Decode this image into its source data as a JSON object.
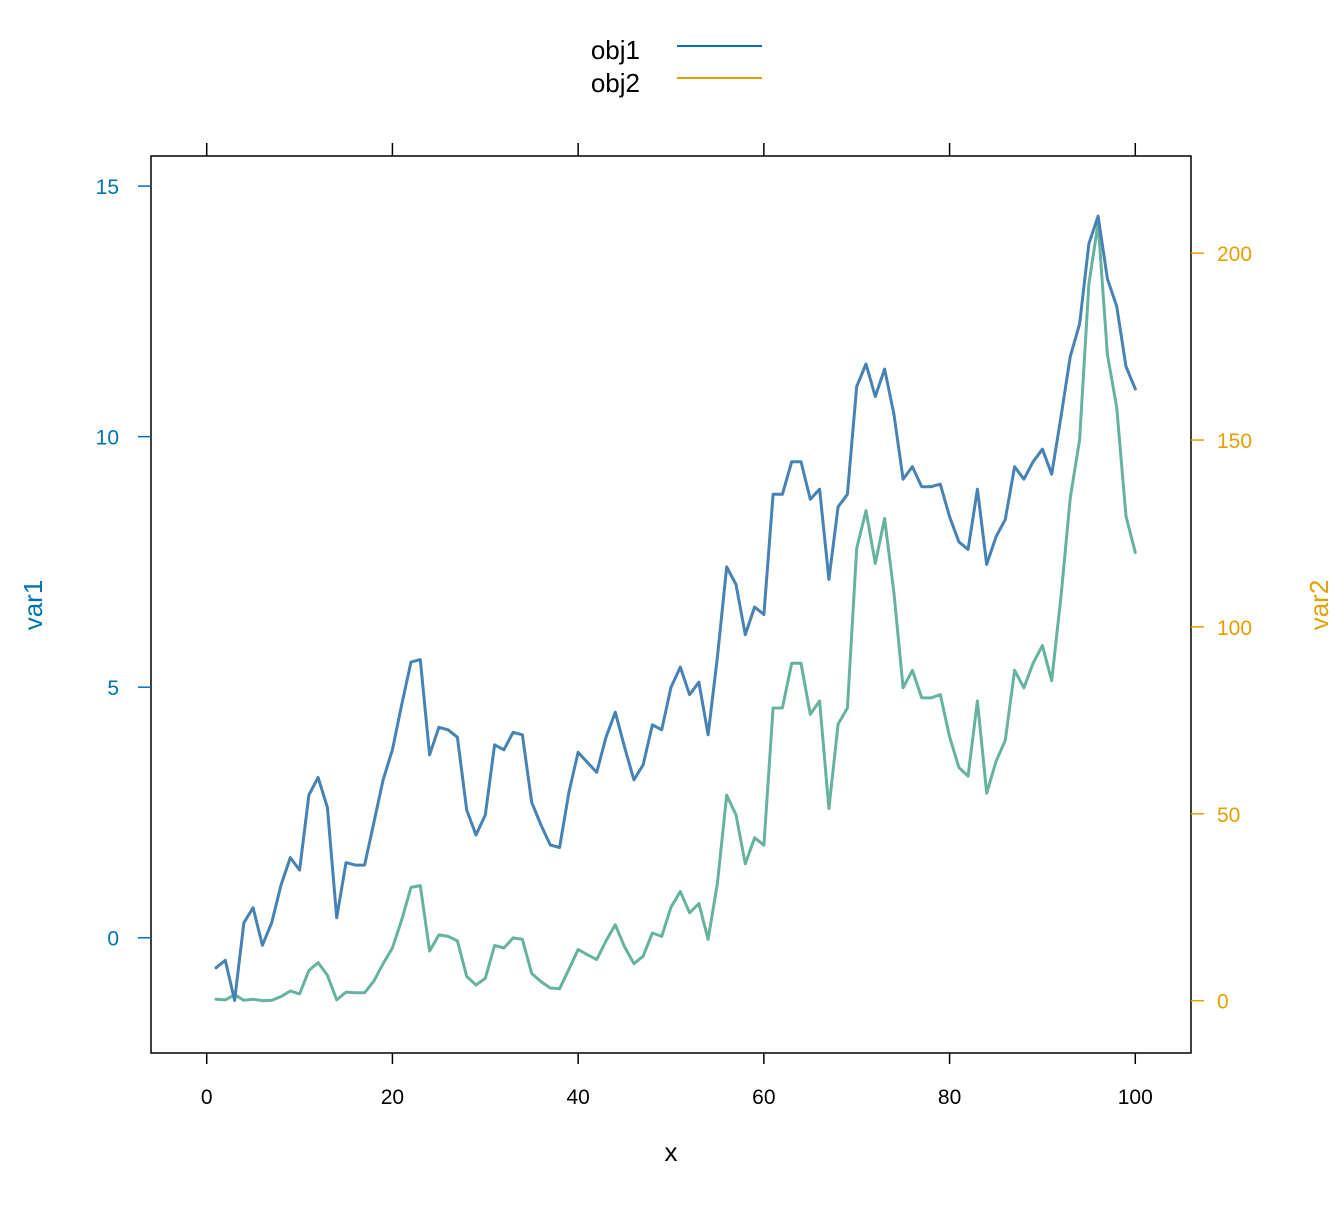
{
  "chart_data": {
    "type": "line",
    "xlabel": "x",
    "ylabel_left": "var1",
    "ylabel_right": "var2",
    "xlim": [
      -6,
      106
    ],
    "ylim_left": [
      -2.3,
      15.6
    ],
    "ylim_right": [
      -14,
      226
    ],
    "x_ticks": [
      0,
      20,
      40,
      60,
      80,
      100
    ],
    "y_left_ticks": [
      0,
      5,
      10,
      15
    ],
    "y_right_ticks": [
      0,
      50,
      100,
      150,
      200
    ],
    "legend_position": "top-center",
    "colors": {
      "obj1_legend": "#0072B2",
      "obj2_legend": "#E69F00",
      "obj1_line": "#4682B4",
      "obj2_line": "#66B2A0",
      "left_axis": "#0072B2",
      "right_axis": "#E69F00"
    },
    "series": [
      {
        "name": "obj1",
        "axis": "left",
        "x": [
          1,
          2,
          3,
          4,
          5,
          6,
          7,
          8,
          9,
          10,
          11,
          12,
          13,
          14,
          15,
          16,
          17,
          18,
          19,
          20,
          21,
          22,
          23,
          24,
          25,
          26,
          27,
          28,
          29,
          30,
          31,
          32,
          33,
          34,
          35,
          36,
          37,
          38,
          39,
          40,
          41,
          42,
          43,
          44,
          45,
          46,
          47,
          48,
          49,
          50,
          51,
          52,
          53,
          54,
          55,
          56,
          57,
          58,
          59,
          60,
          61,
          62,
          63,
          64,
          65,
          66,
          67,
          68,
          69,
          70,
          71,
          72,
          73,
          74,
          75,
          76,
          77,
          78,
          79,
          80,
          81,
          82,
          83,
          84,
          85,
          86,
          87,
          88,
          89,
          90,
          91,
          92,
          93,
          94,
          95,
          96,
          97,
          98,
          99,
          100
        ],
        "values": [
          -0.6,
          -0.45,
          -1.25,
          0.3,
          0.6,
          -0.15,
          0.3,
          1.05,
          1.6,
          1.35,
          2.85,
          3.2,
          2.6,
          0.4,
          1.5,
          1.45,
          1.45,
          2.3,
          3.15,
          3.75,
          4.65,
          5.5,
          5.55,
          3.65,
          4.2,
          4.15,
          4.0,
          2.55,
          2.05,
          2.45,
          3.85,
          3.75,
          4.1,
          4.05,
          2.7,
          2.25,
          1.85,
          1.8,
          2.9,
          3.7,
          3.5,
          3.3,
          4.0,
          4.5,
          3.8,
          3.15,
          3.45,
          4.25,
          4.15,
          5.0,
          5.4,
          4.85,
          5.1,
          4.05,
          5.6,
          7.4,
          7.05,
          6.05,
          6.6,
          6.45,
          8.85,
          8.85,
          9.5,
          9.5,
          8.75,
          8.95,
          7.15,
          8.6,
          8.85,
          11.0,
          11.45,
          10.8,
          11.35,
          10.45,
          9.15,
          9.4,
          9.0,
          9.0,
          9.05,
          8.4,
          7.9,
          7.75,
          8.95,
          7.45,
          8.0,
          8.35,
          9.4,
          9.15,
          9.5,
          9.75,
          9.25,
          10.4,
          11.6,
          12.25,
          13.85,
          14.4,
          13.15,
          12.6,
          11.4,
          10.95
        ]
      },
      {
        "name": "obj2",
        "axis": "right",
        "x": [
          1,
          2,
          3,
          4,
          5,
          6,
          7,
          8,
          9,
          10,
          11,
          12,
          13,
          14,
          15,
          16,
          17,
          18,
          19,
          20,
          21,
          22,
          23,
          24,
          25,
          26,
          27,
          28,
          29,
          30,
          31,
          32,
          33,
          34,
          35,
          36,
          37,
          38,
          39,
          40,
          41,
          42,
          43,
          44,
          45,
          46,
          47,
          48,
          49,
          50,
          51,
          52,
          53,
          54,
          55,
          56,
          57,
          58,
          59,
          60,
          61,
          62,
          63,
          64,
          65,
          66,
          67,
          68,
          69,
          70,
          71,
          72,
          73,
          74,
          75,
          76,
          77,
          78,
          79,
          80,
          81,
          82,
          83,
          84,
          85,
          86,
          87,
          88,
          89,
          90,
          91,
          92,
          93,
          94,
          95,
          96,
          97,
          98,
          99,
          100
        ],
        "values": [
          0.4,
          0.2,
          1.6,
          0.1,
          0.4,
          0.0,
          0.1,
          1.1,
          2.6,
          1.8,
          8.1,
          10.2,
          6.8,
          0.2,
          2.3,
          2.1,
          2.1,
          5.3,
          9.9,
          14.1,
          21.6,
          30.3,
          30.8,
          13.3,
          17.6,
          17.2,
          16.0,
          6.5,
          4.2,
          6.0,
          14.8,
          14.1,
          16.8,
          16.4,
          7.3,
          5.1,
          3.4,
          3.2,
          8.4,
          13.7,
          12.3,
          11.0,
          16.0,
          20.3,
          14.4,
          9.9,
          11.9,
          18.1,
          17.2,
          25.0,
          29.2,
          23.5,
          26.0,
          16.4,
          31.4,
          55.0,
          49.7,
          36.6,
          43.6,
          41.6,
          78.3,
          78.3,
          90.3,
          90.3,
          76.6,
          80.2,
          51.4,
          74.0,
          78.3,
          121.0,
          131.1,
          117.0,
          129.0,
          109.2,
          83.7,
          88.4,
          81.0,
          81.0,
          81.9,
          70.6,
          62.4,
          60.1,
          80.2,
          55.5,
          64.0,
          69.7,
          88.4,
          83.7,
          90.3,
          95.0,
          85.6,
          108.2,
          134.6,
          150.1,
          191.8,
          208.0,
          172.9,
          158.8,
          129.6,
          119.9
        ]
      }
    ]
  }
}
